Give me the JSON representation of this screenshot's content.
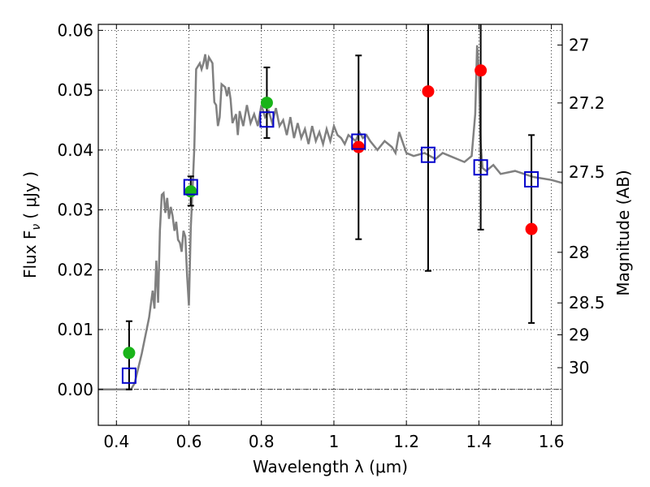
{
  "chart_data": {
    "type": "scatter",
    "xlabel": "Wavelength  λ (μm)",
    "ylabel": "Flux  F",
    "ylabel_sub": "ν",
    "ylabel_units": "( μJy )",
    "y2label": "Magnitude (AB)",
    "xlim": [
      0.35,
      1.63
    ],
    "ylim": [
      -0.006,
      0.061
    ],
    "grid": true,
    "grid_style": "dotted",
    "x_ticks": [
      {
        "value": 0.4,
        "label": "0.4"
      },
      {
        "value": 0.6,
        "label": "0.6"
      },
      {
        "value": 0.8,
        "label": "0.8"
      },
      {
        "value": 1.0,
        "label": "1"
      },
      {
        "value": 1.2,
        "label": "1.2"
      },
      {
        "value": 1.4,
        "label": "1.4"
      },
      {
        "value": 1.6,
        "label": "1.6"
      }
    ],
    "y_ticks": [
      {
        "value": 0.0,
        "label": "0.00"
      },
      {
        "value": 0.01,
        "label": "0.01"
      },
      {
        "value": 0.02,
        "label": "0.02"
      },
      {
        "value": 0.03,
        "label": "0.03"
      },
      {
        "value": 0.04,
        "label": "0.04"
      },
      {
        "value": 0.05,
        "label": "0.05"
      },
      {
        "value": 0.06,
        "label": "0.06"
      }
    ],
    "y2_ticks": [
      {
        "mag": 27.0,
        "label": "27"
      },
      {
        "mag": 27.2,
        "label": "27.2"
      },
      {
        "mag": 27.5,
        "label": "27.5"
      },
      {
        "mag": 28.0,
        "label": "28"
      },
      {
        "mag": 28.5,
        "label": "28.5"
      },
      {
        "mag": 29.0,
        "label": "29"
      },
      {
        "mag": 30.0,
        "label": "30"
      }
    ],
    "colors": {
      "model": "#808080",
      "optical": "#19b419",
      "nir": "#ff0000",
      "model_box": "#0000cc",
      "errorbar": "#000000",
      "zero_line": "#000000"
    },
    "model_spectrum": {
      "x": [
        0.35,
        0.44,
        0.45,
        0.47,
        0.49,
        0.5,
        0.505,
        0.51,
        0.515,
        0.52,
        0.525,
        0.53,
        0.535,
        0.54,
        0.545,
        0.55,
        0.555,
        0.56,
        0.565,
        0.57,
        0.575,
        0.58,
        0.585,
        0.59,
        0.595,
        0.6,
        0.605,
        0.61,
        0.615,
        0.62,
        0.63,
        0.635,
        0.64,
        0.645,
        0.65,
        0.655,
        0.66,
        0.665,
        0.67,
        0.675,
        0.68,
        0.685,
        0.69,
        0.7,
        0.705,
        0.71,
        0.715,
        0.72,
        0.73,
        0.735,
        0.74,
        0.75,
        0.76,
        0.77,
        0.78,
        0.79,
        0.8,
        0.81,
        0.82,
        0.83,
        0.84,
        0.85,
        0.86,
        0.87,
        0.88,
        0.89,
        0.9,
        0.91,
        0.92,
        0.93,
        0.94,
        0.95,
        0.96,
        0.97,
        0.98,
        0.99,
        1.0,
        1.01,
        1.02,
        1.03,
        1.04,
        1.05,
        1.06,
        1.07,
        1.08,
        1.09,
        1.1,
        1.12,
        1.14,
        1.16,
        1.17,
        1.18,
        1.2,
        1.22,
        1.25,
        1.28,
        1.3,
        1.32,
        1.34,
        1.36,
        1.37,
        1.38,
        1.39,
        1.395,
        1.4,
        1.405,
        1.41,
        1.42,
        1.44,
        1.46,
        1.5,
        1.55,
        1.6,
        1.63
      ],
      "y": [
        0.0,
        0.0,
        0.001,
        0.006,
        0.012,
        0.0165,
        0.0135,
        0.0215,
        0.0145,
        0.0265,
        0.0325,
        0.0328,
        0.0295,
        0.032,
        0.0285,
        0.0305,
        0.029,
        0.0265,
        0.028,
        0.025,
        0.0245,
        0.023,
        0.0265,
        0.0255,
        0.019,
        0.014,
        0.027,
        0.0335,
        0.0405,
        0.0535,
        0.0545,
        0.0535,
        0.0545,
        0.056,
        0.0535,
        0.0555,
        0.055,
        0.0545,
        0.048,
        0.0475,
        0.044,
        0.0455,
        0.051,
        0.0505,
        0.049,
        0.0505,
        0.0485,
        0.0445,
        0.046,
        0.0425,
        0.0465,
        0.044,
        0.0475,
        0.0445,
        0.046,
        0.044,
        0.0475,
        0.0455,
        0.0465,
        0.0445,
        0.047,
        0.044,
        0.045,
        0.0425,
        0.0455,
        0.042,
        0.0445,
        0.042,
        0.0435,
        0.041,
        0.044,
        0.0415,
        0.043,
        0.041,
        0.0435,
        0.0415,
        0.044,
        0.0425,
        0.042,
        0.041,
        0.0425,
        0.042,
        0.0415,
        0.043,
        0.042,
        0.0425,
        0.0415,
        0.04,
        0.0415,
        0.0405,
        0.0395,
        0.043,
        0.0395,
        0.039,
        0.0395,
        0.0385,
        0.0395,
        0.039,
        0.0385,
        0.038,
        0.0385,
        0.039,
        0.046,
        0.0575,
        0.053,
        0.041,
        0.037,
        0.0365,
        0.0375,
        0.036,
        0.0365,
        0.0355,
        0.035,
        0.0345
      ]
    },
    "observed_optical": {
      "x": [
        0.435,
        0.605,
        0.815
      ],
      "y": [
        0.0061,
        0.0331,
        0.0479
      ],
      "yerr_low": [
        0.0061,
        0.0024,
        0.0059
      ],
      "yerr_high": [
        0.0053,
        0.0025,
        0.0059
      ]
    },
    "observed_nir": {
      "x": [
        1.068,
        1.26,
        1.405,
        1.545
      ],
      "y": [
        0.0405,
        0.0498,
        0.0533,
        0.0268
      ],
      "yerr_low": [
        0.0154,
        0.03,
        0.0266,
        0.0157
      ],
      "yerr_high": [
        0.0153,
        0.012,
        0.008,
        0.0157
      ]
    },
    "model_boxes": {
      "x": [
        0.435,
        0.605,
        0.815,
        1.068,
        1.26,
        1.405,
        1.545
      ],
      "y": [
        0.0023,
        0.0338,
        0.0451,
        0.0414,
        0.0392,
        0.0371,
        0.0351
      ]
    }
  }
}
